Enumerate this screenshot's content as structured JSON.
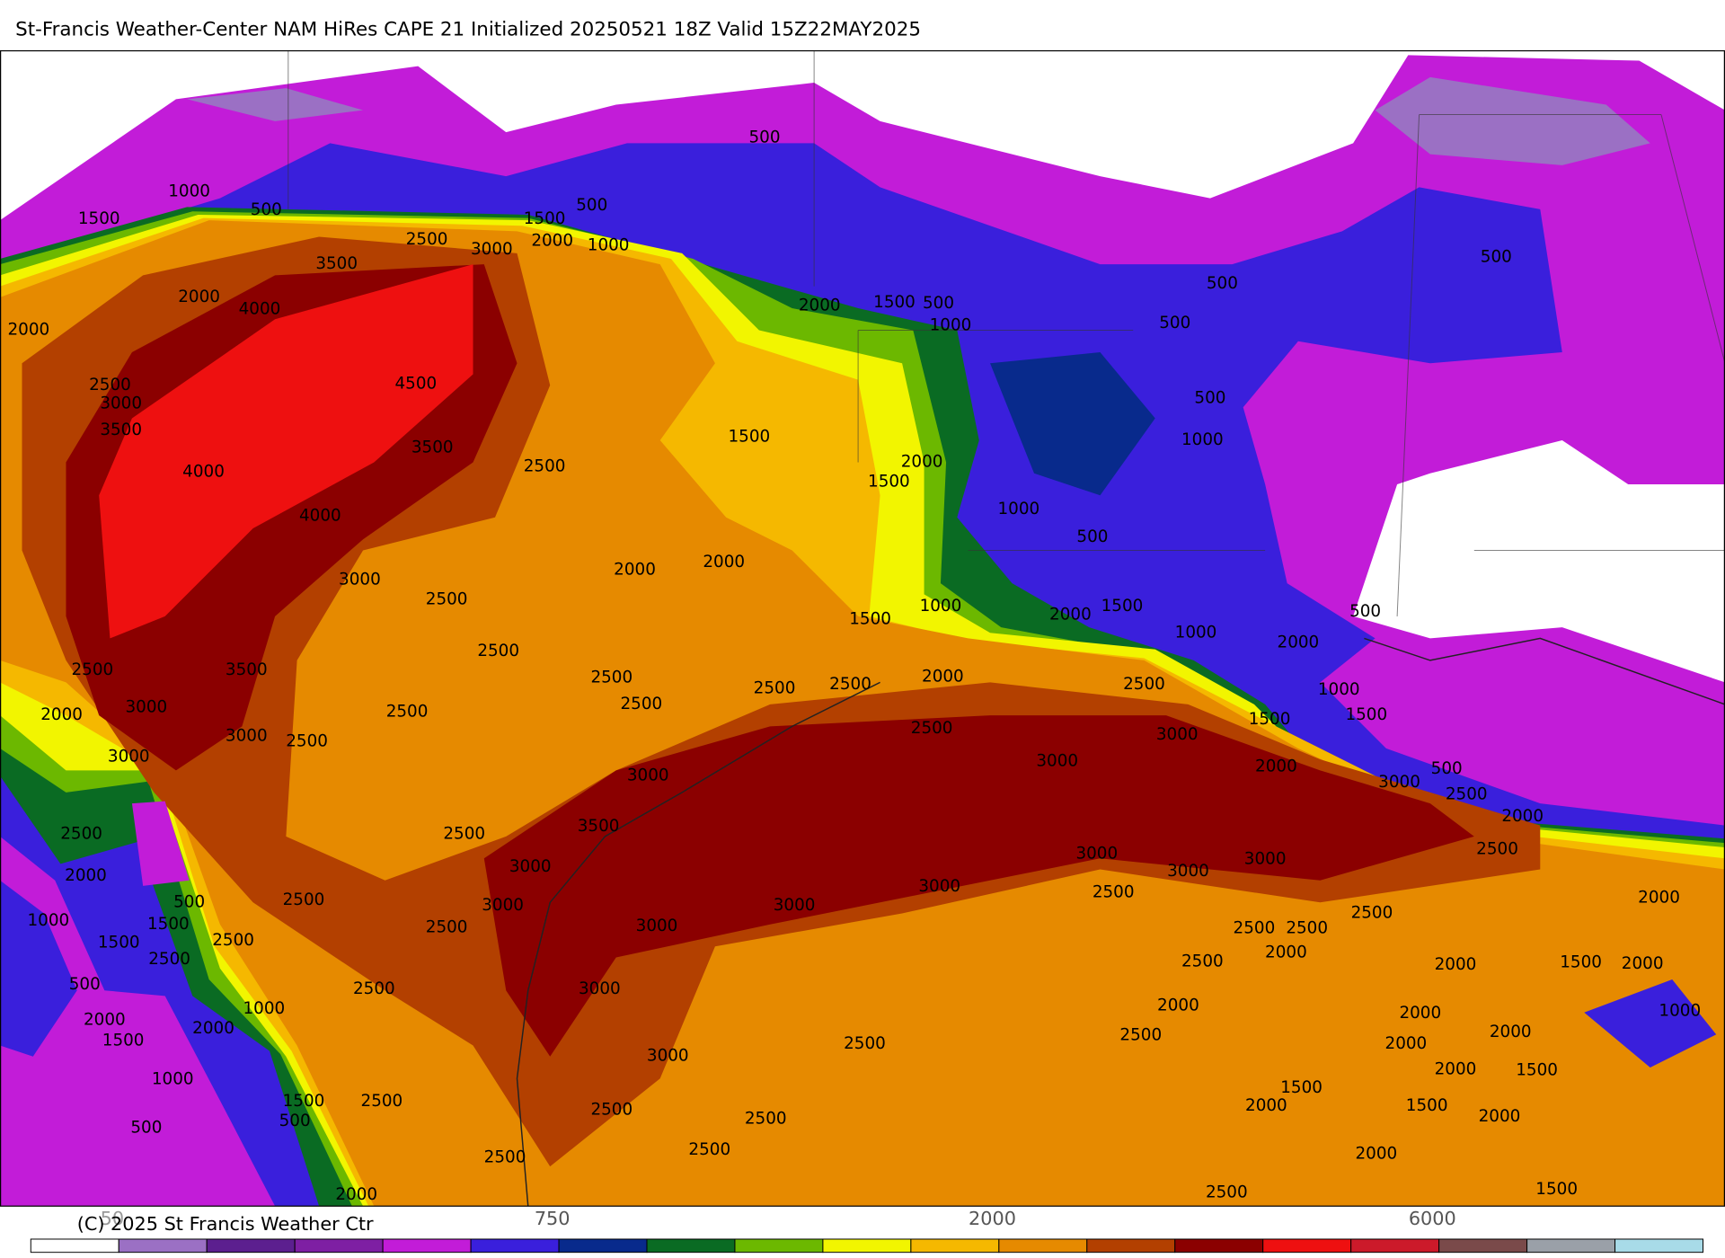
{
  "header": {
    "title": "St-Francis Weather-Center NAM HiRes CAPE  21 Initialized 20250521 18Z Valid 15Z22MAY2025"
  },
  "footer": {
    "copyright": "(C) 2025 St Francis Weather Ctr"
  },
  "colorbar": {
    "colors": [
      "#ffffff",
      "#9b70c4",
      "#5c1f8f",
      "#7e1fa3",
      "#c21cd8",
      "#3a1fdc",
      "#082a8c",
      "#0a6b23",
      "#6cb800",
      "#f2f500",
      "#f5b800",
      "#e68a00",
      "#b34000",
      "#8b0000",
      "#ee1010",
      "#cc1a2a",
      "#7a4a4a",
      "#9aa0a8",
      "#a8dbe8"
    ],
    "labels": [
      "50",
      "750",
      "2000",
      "6000"
    ]
  },
  "contour_labels": [
    "500",
    "1000",
    "500",
    "1500",
    "1500",
    "500",
    "2500",
    "3000",
    "2000",
    "1000",
    "3500",
    "2000",
    "4000",
    "500",
    "500",
    "2000",
    "1500",
    "500",
    "1000",
    "500",
    "2000",
    "2500",
    "3000",
    "4500",
    "500",
    "3500",
    "1000",
    "3500",
    "1500",
    "2000",
    "4000",
    "2500",
    "1500",
    "1000",
    "4000",
    "500",
    "3000",
    "2000",
    "2000",
    "2500",
    "1000",
    "2000",
    "1500",
    "1500",
    "1000",
    "2000",
    "500",
    "2500",
    "2500",
    "3500",
    "2500",
    "2000",
    "2500",
    "2500",
    "2500",
    "3000",
    "2000",
    "2500",
    "2500",
    "1000",
    "1500",
    "1500",
    "2500",
    "3000",
    "3000",
    "2500",
    "3000",
    "3000",
    "2000",
    "3000",
    "500",
    "3000",
    "2500",
    "2000",
    "3500",
    "2500",
    "2500",
    "3000",
    "2500",
    "3000",
    "3000",
    "2000",
    "3000",
    "3000",
    "2500",
    "500",
    "2500",
    "3000",
    "3000",
    "2000",
    "1000",
    "1500",
    "2500",
    "2500",
    "3000",
    "2500",
    "2500",
    "1500",
    "2500",
    "2000",
    "2500",
    "2500",
    "2000",
    "1500",
    "2000",
    "500",
    "2500",
    "3000",
    "1000",
    "2000",
    "2000",
    "1000",
    "2000",
    "2000",
    "2500",
    "2000",
    "1500",
    "2500",
    "2000",
    "3000",
    "1000",
    "2000",
    "1500",
    "1500",
    "2500",
    "1500",
    "2000",
    "1500",
    "2000",
    "500",
    "2500",
    "2500",
    "500",
    "2500",
    "2000",
    "2500",
    "2000",
    "2500",
    "1500"
  ]
}
